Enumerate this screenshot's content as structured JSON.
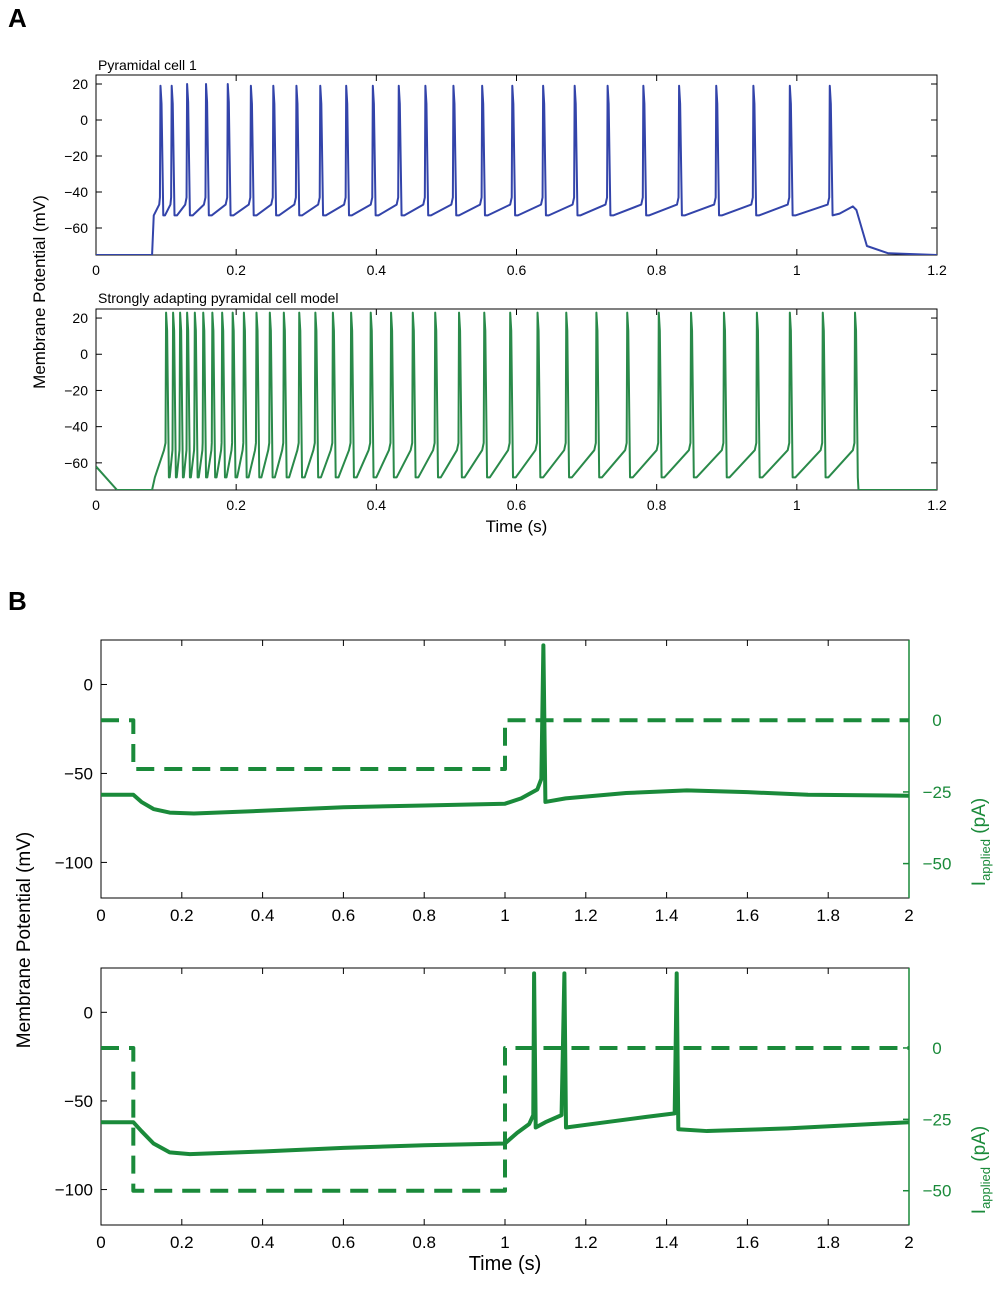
{
  "panels": {
    "A": {
      "letter": "A",
      "ylabel": "Membrane Potential (mV)",
      "xlabel": "Time (s)"
    },
    "B": {
      "letter": "B",
      "ylabel": "Membrane Potential (mV)",
      "xlabel": "Time (s)",
      "right_label_main": "I",
      "right_label_sub": "applied",
      "right_label_unit": " (pA)"
    }
  },
  "colors": {
    "blue": "#3344aa",
    "green": "#2a8a4a",
    "darkgreen": "#1a8a3a",
    "axis": "#000000"
  },
  "chart_data": [
    {
      "id": "A1",
      "type": "line",
      "title": "Pyramidal cell 1",
      "xlim": [
        0,
        1.2
      ],
      "ylim": [
        -75,
        25
      ],
      "xticks": [
        0,
        0.2,
        0.4,
        0.6,
        0.8,
        1,
        1.2
      ],
      "xtick_labels": [
        "0",
        "0.2",
        "0.4",
        "0.6",
        "0.8",
        "1",
        "1.2"
      ],
      "yticks": [
        -60,
        -40,
        -20,
        0,
        20
      ],
      "ytick_labels": [
        "−60",
        "−40",
        "−20",
        "0",
        "20"
      ],
      "series": [
        {
          "kind": "spikes",
          "color": "#3344aa",
          "rest": -75,
          "stim_on": 0.08,
          "stim_off": 1.08,
          "spike_times": [
            0.092,
            0.108,
            0.13,
            0.157,
            0.188,
            0.221,
            0.253,
            0.286,
            0.32,
            0.357,
            0.395,
            0.432,
            0.47,
            0.51,
            0.551,
            0.594,
            0.638,
            0.683,
            0.73,
            0.781,
            0.832,
            0.885,
            0.938,
            0.99,
            1.047
          ],
          "spike_peaks": [
            19,
            19,
            20,
            20,
            20,
            19,
            19,
            19,
            19,
            19,
            19,
            19,
            19,
            19,
            19,
            19,
            19,
            19,
            19,
            19,
            19,
            19,
            19,
            19,
            19
          ],
          "trough": -53,
          "pre": -47
        }
      ]
    },
    {
      "id": "A2",
      "type": "line",
      "title": "Strongly adapting pyramidal cell model",
      "xlim": [
        0,
        1.2
      ],
      "ylim": [
        -75,
        25
      ],
      "xticks": [
        0,
        0.2,
        0.4,
        0.6,
        0.8,
        1,
        1.2
      ],
      "xtick_labels": [
        "0",
        "0.2",
        "0.4",
        "0.6",
        "0.8",
        "1",
        "1.2"
      ],
      "yticks": [
        -60,
        -40,
        -20,
        0,
        20
      ],
      "ytick_labels": [
        "−60",
        "−40",
        "−20",
        "0",
        "20"
      ],
      "xlabel": "Time (s)",
      "series": [
        {
          "kind": "spikes",
          "color": "#2a8a4a",
          "rest": -62,
          "stim_on": 0.08,
          "stim_off": 1.083,
          "spike_times": [
            0.1,
            0.11,
            0.12,
            0.13,
            0.141,
            0.153,
            0.166,
            0.18,
            0.195,
            0.211,
            0.229,
            0.248,
            0.268,
            0.29,
            0.313,
            0.338,
            0.364,
            0.392,
            0.421,
            0.452,
            0.484,
            0.518,
            0.554,
            0.591,
            0.63,
            0.671,
            0.714,
            0.758,
            0.803,
            0.849,
            0.896,
            0.943,
            0.99,
            1.037,
            1.083
          ],
          "spike_peaks": [
            23
          ],
          "trough": -68,
          "pre": -53
        }
      ]
    },
    {
      "id": "B1",
      "type": "line",
      "xlim": [
        0,
        2
      ],
      "ylim": [
        -120,
        25
      ],
      "y2lim": [
        -62,
        28
      ],
      "xticks": [
        0,
        0.2,
        0.4,
        0.6,
        0.8,
        1,
        1.2,
        1.4,
        1.6,
        1.8,
        2
      ],
      "xtick_labels": [
        "0",
        "0.2",
        "0.4",
        "0.6",
        "0.8",
        "1",
        "1.2",
        "1.4",
        "1.6",
        "1.8",
        "2"
      ],
      "yticks": [
        -100,
        -50,
        0
      ],
      "ytick_labels": [
        "−100",
        "−50",
        "0"
      ],
      "y2ticks": [
        0,
        -25,
        -50
      ],
      "y2tick_labels": [
        "0",
        "−25",
        "−50"
      ],
      "series": [
        {
          "name": "Membrane potential",
          "kind": "voltage",
          "color": "#1a8a3a",
          "points": [
            [
              0,
              -62
            ],
            [
              0.08,
              -62
            ],
            [
              0.1,
              -66
            ],
            [
              0.13,
              -70
            ],
            [
              0.17,
              -72
            ],
            [
              0.23,
              -72.5
            ],
            [
              0.4,
              -71
            ],
            [
              0.6,
              -69
            ],
            [
              0.8,
              -68
            ],
            [
              1.0,
              -67
            ],
            [
              1.04,
              -64
            ],
            [
              1.08,
              -59
            ],
            [
              1.09,
              -53
            ],
            [
              1.095,
              22
            ],
            [
              1.1,
              -66
            ],
            [
              1.15,
              -64
            ],
            [
              1.3,
              -61
            ],
            [
              1.45,
              -59.5
            ],
            [
              1.6,
              -60.5
            ],
            [
              1.75,
              -62
            ],
            [
              2.0,
              -62.5
            ]
          ]
        },
        {
          "name": "Applied current",
          "kind": "current",
          "color": "#1a8a3a",
          "points": [
            [
              0,
              0
            ],
            [
              0.08,
              0
            ],
            [
              0.08,
              -17
            ],
            [
              1.0,
              -17
            ],
            [
              1.0,
              0
            ],
            [
              2.0,
              0
            ]
          ]
        }
      ]
    },
    {
      "id": "B2",
      "type": "line",
      "xlim": [
        0,
        2
      ],
      "ylim": [
        -120,
        25
      ],
      "y2lim": [
        -62,
        28
      ],
      "xticks": [
        0,
        0.2,
        0.4,
        0.6,
        0.8,
        1,
        1.2,
        1.4,
        1.6,
        1.8,
        2
      ],
      "xtick_labels": [
        "0",
        "0.2",
        "0.4",
        "0.6",
        "0.8",
        "1",
        "1.2",
        "1.4",
        "1.6",
        "1.8",
        "2"
      ],
      "yticks": [
        -100,
        -50,
        0
      ],
      "ytick_labels": [
        "−100",
        "−50",
        "0"
      ],
      "y2ticks": [
        0,
        -25,
        -50
      ],
      "y2tick_labels": [
        "0",
        "−25",
        "−50"
      ],
      "xlabel": "Time (s)",
      "series": [
        {
          "name": "Membrane potential",
          "kind": "voltage",
          "color": "#1a8a3a",
          "points": [
            [
              0,
              -62
            ],
            [
              0.08,
              -62
            ],
            [
              0.1,
              -67
            ],
            [
              0.13,
              -74
            ],
            [
              0.17,
              -79
            ],
            [
              0.22,
              -80
            ],
            [
              0.4,
              -78.5
            ],
            [
              0.6,
              -76.5
            ],
            [
              0.8,
              -75
            ],
            [
              1.0,
              -74
            ],
            [
              1.03,
              -68
            ],
            [
              1.06,
              -63
            ],
            [
              1.07,
              -58
            ],
            [
              1.072,
              22
            ],
            [
              1.076,
              -65
            ],
            [
              1.1,
              -62
            ],
            [
              1.14,
              -58
            ],
            [
              1.147,
              22
            ],
            [
              1.151,
              -65
            ],
            [
              1.25,
              -62
            ],
            [
              1.35,
              -59
            ],
            [
              1.42,
              -57
            ],
            [
              1.425,
              22
            ],
            [
              1.429,
              -66
            ],
            [
              1.5,
              -67
            ],
            [
              1.7,
              -65.5
            ],
            [
              2.0,
              -62
            ]
          ]
        },
        {
          "name": "Applied current",
          "kind": "current",
          "color": "#1a8a3a",
          "points": [
            [
              0,
              0
            ],
            [
              0.08,
              0
            ],
            [
              0.08,
              -50
            ],
            [
              1.0,
              -50
            ],
            [
              1.0,
              0
            ],
            [
              2.0,
              0
            ]
          ]
        }
      ]
    }
  ]
}
